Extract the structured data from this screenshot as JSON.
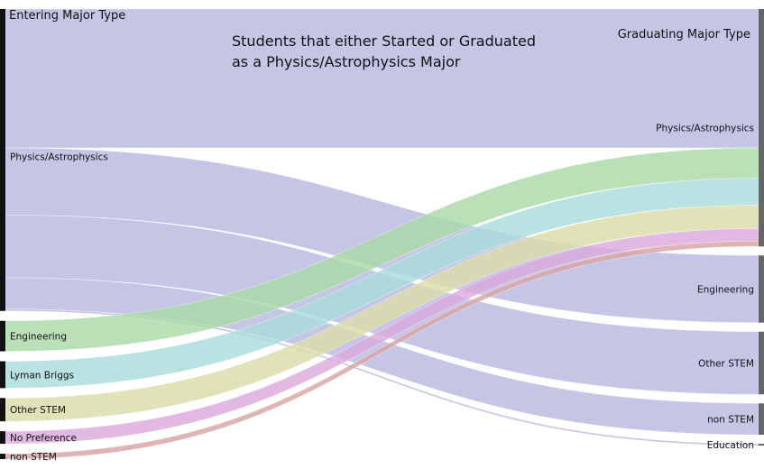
{
  "chart_data": {
    "type": "sankey",
    "title_lines": [
      "Students that either Started or Graduated",
      "as a Physics/Astrophysics Major"
    ],
    "left_header": "Entering Major Type",
    "right_header": "Graduating Major Type",
    "sources": [
      {
        "name": "Physics/Astrophysics",
        "color": "#b8b8e0"
      },
      {
        "name": "Engineering",
        "color": "#aad9a6"
      },
      {
        "name": "Lyman Briggs",
        "color": "#a9dcdc"
      },
      {
        "name": "Other STEM",
        "color": "#dcdcaa"
      },
      {
        "name": "No Preference",
        "color": "#dba9dc"
      },
      {
        "name": "non STEM",
        "color": "#d8a4a4"
      }
    ],
    "targets": [
      {
        "name": "Physics/Astrophysics"
      },
      {
        "name": "Engineering"
      },
      {
        "name": "Other STEM"
      },
      {
        "name": "non STEM"
      },
      {
        "name": "Education"
      }
    ],
    "flows": [
      {
        "source": "Physics/Astrophysics",
        "target": "Physics/Astrophysics",
        "value": 155
      },
      {
        "source": "Physics/Astrophysics",
        "target": "Engineering",
        "value": 75
      },
      {
        "source": "Physics/Astrophysics",
        "target": "Other STEM",
        "value": 70
      },
      {
        "source": "Physics/Astrophysics",
        "target": "non STEM",
        "value": 35
      },
      {
        "source": "Physics/Astrophysics",
        "target": "Education",
        "value": 2
      },
      {
        "source": "Engineering",
        "target": "Physics/Astrophysics",
        "value": 34
      },
      {
        "source": "Lyman Briggs",
        "target": "Physics/Astrophysics",
        "value": 30
      },
      {
        "source": "Other STEM",
        "target": "Physics/Astrophysics",
        "value": 26
      },
      {
        "source": "No Preference",
        "target": "Physics/Astrophysics",
        "value": 14
      },
      {
        "source": "non STEM",
        "target": "Physics/Astrophysics",
        "value": 6
      }
    ]
  }
}
